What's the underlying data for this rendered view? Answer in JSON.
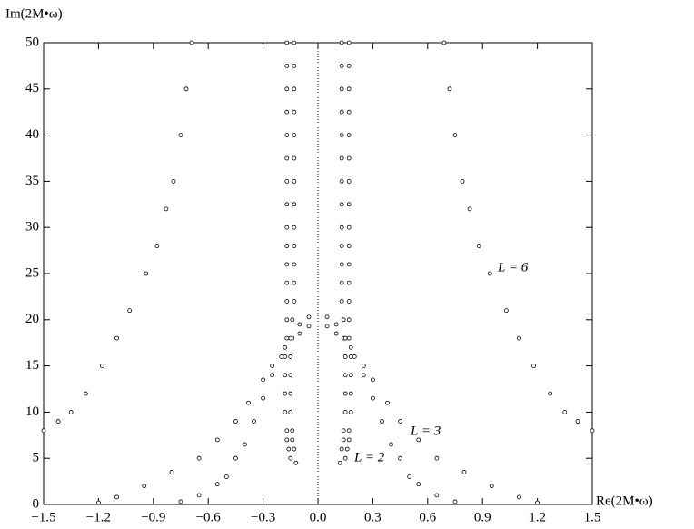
{
  "chart_data": {
    "type": "scatter",
    "xlabel": "Re(2M•ω)",
    "ylabel": "Im(2M•ω)",
    "annotations": [
      "L = 6",
      "L = 3",
      "L = 2"
    ],
    "xlim": [
      -1.5,
      1.5
    ],
    "ylim": [
      0,
      50
    ],
    "xticks": [
      {
        "value": -1.5,
        "label": "−1.5"
      },
      {
        "value": -1.2,
        "label": "−1.2"
      },
      {
        "value": -0.9,
        "label": "−0.9"
      },
      {
        "value": -0.6,
        "label": "−0.6"
      },
      {
        "value": -0.3,
        "label": "−0.3"
      },
      {
        "value": 0,
        "label": "0.0"
      },
      0.3,
      0.6,
      0.9,
      1.2,
      1.5
    ],
    "yticks": [
      0,
      5,
      10,
      15,
      20,
      25,
      30,
      35,
      40,
      45,
      50
    ],
    "zero_line": true,
    "marker": "hollow-circle",
    "series": [
      {
        "color": "#000000",
        "x": [
          1.5,
          1.42,
          1.35,
          1.27,
          1.18,
          1.1,
          1.03,
          0.94,
          0.88,
          0.83,
          0.79,
          0.75,
          0.72,
          0.69
        ],
        "y": [
          8,
          9,
          10,
          12,
          15,
          18,
          21,
          25,
          28,
          32,
          35,
          40,
          45,
          50
        ]
      },
      {
        "color": "#000000",
        "x": [
          -1.5,
          -1.42,
          -1.35,
          -1.27,
          -1.18,
          -1.1,
          -1.03,
          -0.94,
          -0.88,
          -0.83,
          -0.79,
          -0.75,
          -0.72,
          -0.69
        ],
        "y": [
          8,
          9,
          10,
          12,
          15,
          18,
          21,
          25,
          28,
          32,
          35,
          40,
          45,
          50
        ]
      },
      {
        "color": "#000000",
        "x": [
          0.15,
          0.16,
          0.17,
          0.17,
          0.18,
          0.18,
          0.18,
          0.18,
          0.17,
          0.17,
          0.17,
          0.17,
          0.17,
          0.17,
          0.17,
          0.17,
          0.17,
          0.17,
          0.17,
          0.17,
          0.17,
          0.17,
          0.17
        ],
        "y": [
          5,
          6,
          7,
          8,
          10,
          12,
          14,
          16,
          18,
          20,
          22,
          24,
          26,
          28,
          30,
          32.5,
          35,
          37.5,
          40,
          42.5,
          45,
          47.5,
          50
        ]
      },
      {
        "color": "#000000",
        "x": [
          -0.15,
          -0.16,
          -0.17,
          -0.17,
          -0.18,
          -0.18,
          -0.18,
          -0.18,
          -0.17,
          -0.17,
          -0.17,
          -0.17,
          -0.17,
          -0.17,
          -0.17,
          -0.17,
          -0.17,
          -0.17,
          -0.17,
          -0.17,
          -0.17,
          -0.17,
          -0.17
        ],
        "y": [
          5,
          6,
          7,
          8,
          10,
          12,
          14,
          16,
          18,
          20,
          22,
          24,
          26,
          28,
          30,
          32.5,
          35,
          37.5,
          40,
          42.5,
          45,
          47.5,
          50
        ]
      },
      {
        "color": "#000000",
        "x": [
          0.12,
          0.13,
          0.14,
          0.14,
          0.15,
          0.15,
          0.15,
          0.15,
          0.14,
          0.14,
          0.13,
          0.13,
          0.13,
          0.13,
          0.13,
          0.13,
          0.13,
          0.13,
          0.13,
          0.13,
          0.13,
          0.13,
          0.13
        ],
        "y": [
          4.5,
          6,
          7,
          8,
          10,
          12,
          14,
          16,
          18,
          20,
          22,
          24,
          26,
          28,
          30,
          32.5,
          35,
          37.5,
          40,
          42.5,
          45,
          47.5,
          50
        ]
      },
      {
        "color": "#000000",
        "x": [
          -0.12,
          -0.13,
          -0.14,
          -0.14,
          -0.15,
          -0.15,
          -0.15,
          -0.15,
          -0.14,
          -0.14,
          -0.13,
          -0.13,
          -0.13,
          -0.13,
          -0.13,
          -0.13,
          -0.13,
          -0.13,
          -0.13,
          -0.13,
          -0.13,
          -0.13,
          -0.13
        ],
        "y": [
          4.5,
          6,
          7,
          8,
          10,
          12,
          14,
          16,
          18,
          20,
          22,
          24,
          26,
          28,
          30,
          32.5,
          35,
          37.5,
          40,
          42.5,
          45,
          47.5,
          50
        ]
      },
      {
        "color": "#000000",
        "x": [
          0.05,
          0.1,
          0.18,
          0.25,
          0.3,
          0.38,
          0.45,
          0.55,
          0.65,
          0.8,
          0.95,
          1.1,
          1.2
        ],
        "y": [
          19.3,
          18.5,
          17,
          15,
          13.5,
          11,
          9,
          7,
          5,
          3.5,
          2,
          0.8,
          0.2
        ]
      },
      {
        "color": "#000000",
        "x": [
          -0.05,
          -0.1,
          -0.18,
          -0.25,
          -0.3,
          -0.38,
          -0.45,
          -0.55,
          -0.65,
          -0.8,
          -0.95,
          -1.1,
          -1.2
        ],
        "y": [
          19.3,
          18.5,
          17,
          15,
          13.5,
          11,
          9,
          7,
          5,
          3.5,
          2,
          0.8,
          0.2
        ]
      },
      {
        "color": "#000000",
        "x": [
          0.05,
          0.1,
          0.15,
          0.2,
          0.25,
          0.3,
          0.35,
          0.4,
          0.45,
          0.5,
          0.55,
          0.65,
          0.75
        ],
        "y": [
          20.3,
          19.5,
          18,
          16,
          14,
          11.5,
          9,
          6.5,
          5,
          3,
          2.2,
          1,
          0.3
        ]
      },
      {
        "color": "#000000",
        "x": [
          -0.05,
          -0.1,
          -0.15,
          -0.2,
          -0.25,
          -0.3,
          -0.35,
          -0.4,
          -0.45,
          -0.5,
          -0.55,
          -0.65,
          -0.75
        ],
        "y": [
          20.3,
          19.5,
          18,
          16,
          14,
          11.5,
          9,
          6.5,
          5,
          3,
          2.2,
          1,
          0.3
        ]
      }
    ]
  }
}
